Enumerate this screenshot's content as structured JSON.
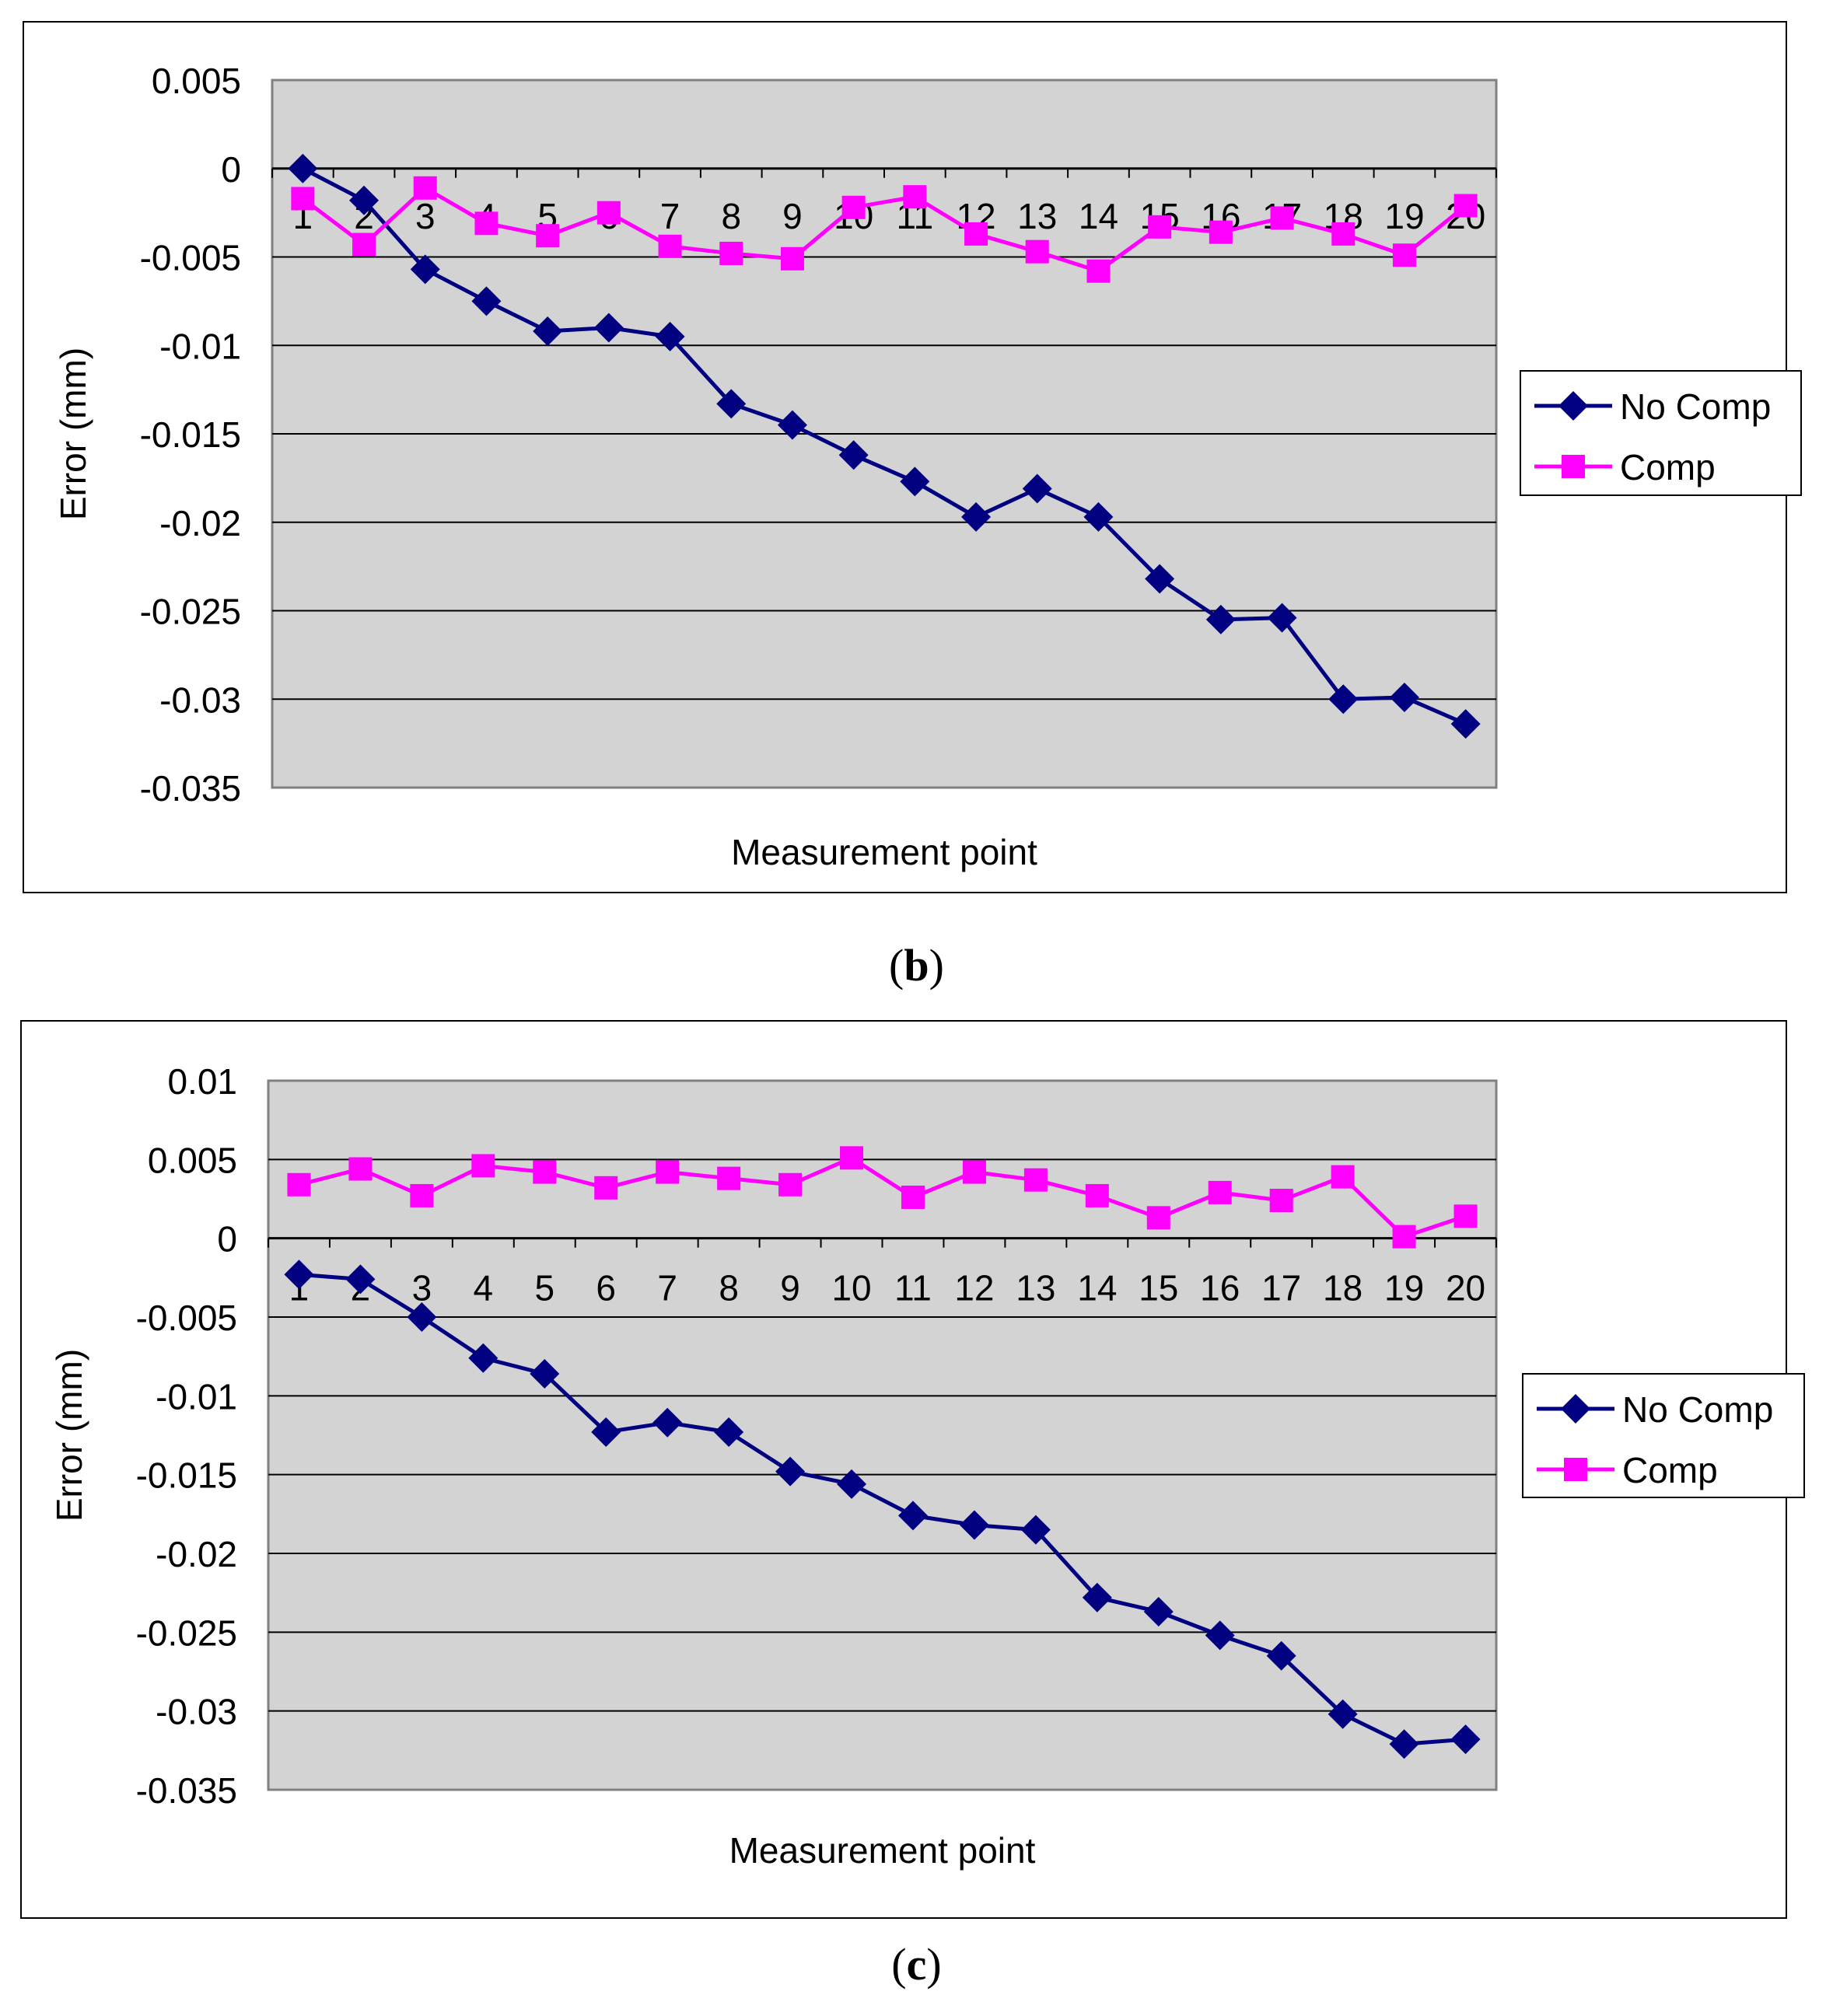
{
  "chart_data": [
    {
      "type": "line",
      "panel_label": "b",
      "categories": [
        "1",
        "2",
        "3",
        "4",
        "5",
        "6",
        "7",
        "8",
        "9",
        "10",
        "11",
        "12",
        "13",
        "14",
        "15",
        "16",
        "17",
        "18",
        "19",
        "20"
      ],
      "series": [
        {
          "name": "No Comp",
          "color": "#000080",
          "marker": "diamond",
          "values": [
            0,
            -0.0018,
            -0.0057,
            -0.0075,
            -0.0092,
            -0.009,
            -0.0095,
            -0.0133,
            -0.0145,
            -0.0162,
            -0.0177,
            -0.0197,
            -0.0181,
            -0.0197,
            -0.0232,
            -0.0255,
            -0.0254,
            -0.03,
            -0.0299,
            -0.0314
          ]
        },
        {
          "name": "Comp",
          "color": "#ff00ff",
          "marker": "square",
          "values": [
            -0.0017,
            -0.0043,
            -0.0011,
            -0.0031,
            -0.0038,
            -0.0025,
            -0.0044,
            -0.0048,
            -0.0051,
            -0.0022,
            -0.0016,
            -0.0037,
            -0.0047,
            -0.0058,
            -0.0033,
            -0.0036,
            -0.0028,
            -0.0037,
            -0.0049,
            -0.0021
          ]
        }
      ],
      "xlabel": "Measurement point",
      "ylabel": "Error (mm)",
      "yticks": [
        0.005,
        0,
        -0.005,
        -0.01,
        -0.015,
        -0.02,
        -0.025,
        -0.03,
        -0.035
      ],
      "ytick_labels": [
        "0.005",
        "0",
        "-0.005",
        "-0.01",
        "-0.015",
        "-0.02",
        "-0.025",
        "-0.03",
        "-0.035"
      ],
      "ylim": [
        -0.035,
        0.005
      ],
      "grid": true,
      "legend": "right"
    },
    {
      "type": "line",
      "panel_label": "c",
      "categories": [
        "1",
        "2",
        "3",
        "4",
        "5",
        "6",
        "7",
        "8",
        "9",
        "10",
        "11",
        "12",
        "13",
        "14",
        "15",
        "16",
        "17",
        "18",
        "19",
        "20"
      ],
      "series": [
        {
          "name": "No Comp",
          "color": "#000080",
          "marker": "diamond",
          "values": [
            -0.0023,
            -0.0026,
            -0.005,
            -0.0076,
            -0.0086,
            -0.0123,
            -0.0117,
            -0.0123,
            -0.0148,
            -0.0156,
            -0.0176,
            -0.0182,
            -0.0185,
            -0.0228,
            -0.0237,
            -0.0252,
            -0.0265,
            -0.0302,
            -0.0321,
            -0.0318
          ]
        },
        {
          "name": "Comp",
          "color": "#ff00ff",
          "marker": "square",
          "values": [
            0.0034,
            0.0044,
            0.0027,
            0.0046,
            0.0042,
            0.0032,
            0.0042,
            0.0038,
            0.0034,
            0.0051,
            0.0026,
            0.0042,
            0.0037,
            0.0027,
            0.0013,
            0.0029,
            0.0024,
            0.0039,
            0.0001,
            0.0014
          ]
        }
      ],
      "xlabel": "Measurement point",
      "ylabel": "Error (mm)",
      "yticks": [
        0.01,
        0.005,
        0,
        -0.005,
        -0.01,
        -0.015,
        -0.02,
        -0.025,
        -0.03,
        -0.035
      ],
      "ytick_labels": [
        "0.01",
        "0.005",
        "0",
        "-0.005",
        "-0.01",
        "-0.015",
        "-0.02",
        "-0.025",
        "-0.03",
        "-0.035"
      ],
      "ylim": [
        -0.035,
        0.01
      ],
      "grid": true,
      "legend": "right"
    }
  ],
  "colors": {
    "plot_background": "#d3d3d3",
    "no_comp": "#000080",
    "comp": "#ff00ff"
  }
}
